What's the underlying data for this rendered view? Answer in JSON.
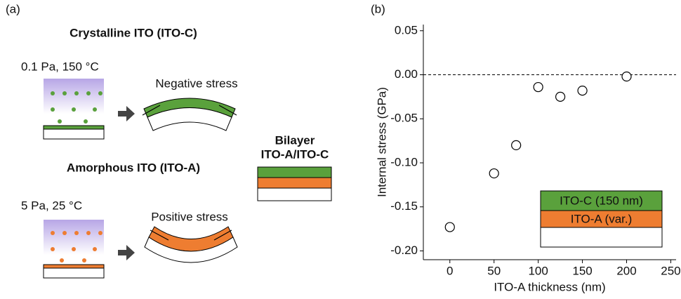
{
  "panel_a": {
    "label": "(a)",
    "crystalline_title": "Crystalline ITO (ITO-C)",
    "crystalline_conditions": "0.1 Pa, 150 °C",
    "negative_stress": "Negative stress",
    "amorphous_title": "Amorphous ITO (ITO-A)",
    "amorphous_conditions": "5 Pa, 25 °C",
    "positive_stress": "Positive stress",
    "bilayer_title_1": "Bilayer",
    "bilayer_title_2": "ITO-A/ITO-C"
  },
  "chart_data": {
    "type": "scatter",
    "panel_label": "(b)",
    "x_label": "ITO-A thickness (nm)",
    "y_label": "Internal stress (GPa)",
    "x": [
      0,
      50,
      75,
      100,
      125,
      150,
      200
    ],
    "values": [
      -0.173,
      -0.112,
      -0.08,
      -0.014,
      -0.025,
      -0.018,
      -0.002
    ],
    "xlim": [
      -30,
      256
    ],
    "ylim": [
      -0.21,
      0.057
    ],
    "xticks": [
      0,
      50,
      100,
      150,
      200,
      250
    ],
    "yticks": [
      0.05,
      {
        "value": 0,
        "label": "0.00"
      },
      -0.05,
      {
        "value": -0.1,
        "label": "-0.10"
      },
      -0.15,
      {
        "value": -0.2,
        "label": "-0.20"
      }
    ],
    "reference_line": 0,
    "inset_labels": [
      "ITO-C (150 nm)",
      "ITO-A (var.)"
    ],
    "inset_colors": [
      "#5aa13c",
      "#ee7d31"
    ]
  }
}
